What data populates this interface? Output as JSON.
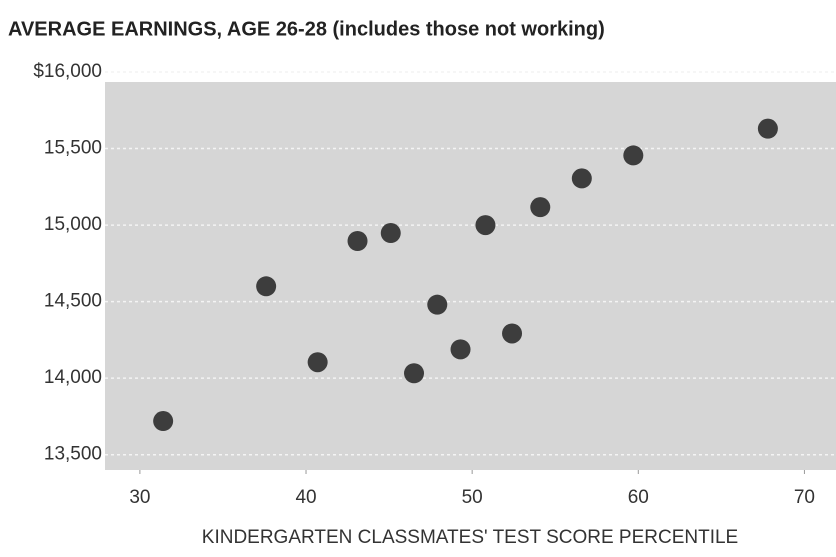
{
  "chart_data": {
    "type": "scatter",
    "title": "AVERAGE EARNINGS, AGE 26-28 (includes those not working)",
    "xlabel": "KINDERGARTEN CLASSMATES' TEST SCORE PERCENTILE",
    "x": [
      31.4,
      37.6,
      40.7,
      43.1,
      45.1,
      46.5,
      47.9,
      49.3,
      50.8,
      52.4,
      54.1,
      56.6,
      59.7,
      67.8
    ],
    "values": [
      13720,
      14600,
      14104,
      14896,
      14948,
      14032,
      14480,
      14188,
      15000,
      14292,
      15117,
      15305,
      15455,
      15630
    ],
    "color": "#3d3d3d",
    "xlim": [
      27.9,
      71.9
    ],
    "xticks": [
      30,
      40,
      50,
      60,
      70
    ],
    "ylim": [
      13400,
      16000
    ],
    "yticks": [
      {
        "value": 13500,
        "label": "13,500"
      },
      {
        "value": 14000,
        "label": "14,000"
      },
      {
        "value": 14500,
        "label": "14,500"
      },
      {
        "value": 15000,
        "label": "15,000"
      },
      {
        "value": 15500,
        "label": "15,500"
      },
      {
        "value": 16000,
        "label": "$16,000"
      }
    ],
    "grid": true
  }
}
